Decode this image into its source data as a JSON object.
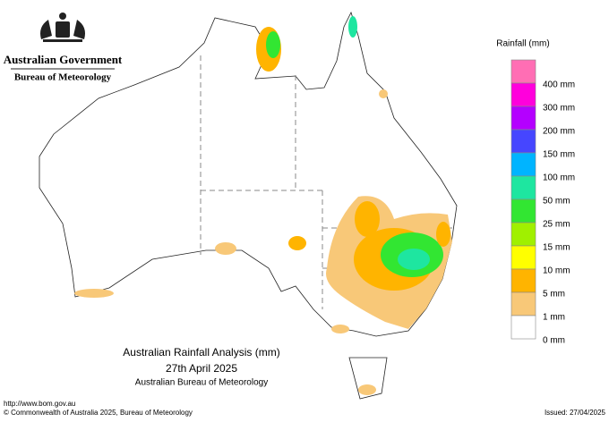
{
  "header": {
    "government": "Australian Government",
    "agency": "Bureau of Meteorology"
  },
  "legend": {
    "title": "Rainfall (mm)",
    "colors": [
      "#ff6eb4",
      "#ff00dc",
      "#b400ff",
      "#4646ff",
      "#00b4ff",
      "#1ee6a0",
      "#32e632",
      "#a0f000",
      "#ffff00",
      "#ffb400",
      "#f8c878",
      "#ffffff"
    ],
    "labels": [
      "400 mm",
      "300 mm",
      "200 mm",
      "150 mm",
      "100 mm",
      "50 mm",
      "25 mm",
      "15 mm",
      "10 mm",
      "5 mm",
      "1 mm",
      "0 mm"
    ]
  },
  "caption": {
    "title": "Australian Rainfall Analysis (mm)",
    "date": "27th April 2025",
    "source": "Australian Bureau of Meteorology"
  },
  "footer": {
    "url": "http://www.bom.gov.au",
    "copyright": "© Commonwealth of Australia 2025, Bureau of Meteorology",
    "issued": "Issued: 27/04/2025"
  }
}
